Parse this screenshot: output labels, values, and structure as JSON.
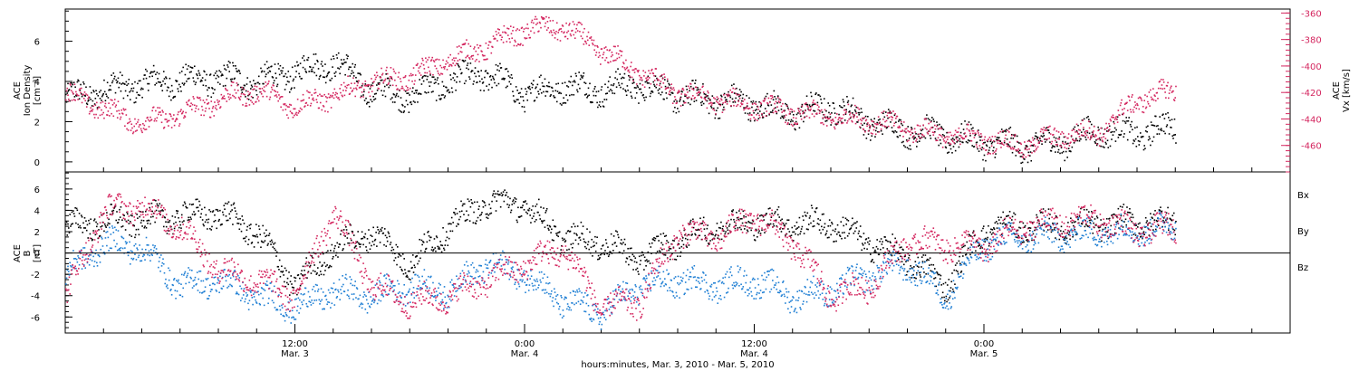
{
  "colors": {
    "black": "#000000",
    "pink": "#d4265f",
    "blue": "#1f7fd4"
  },
  "chart_data": [
    {
      "type": "scatter",
      "panel": "top",
      "ylabel_left_lines": [
        "ACE",
        "Ion Density",
        "[cm⁻³]"
      ],
      "ylabel_right_lines": [
        "ACE",
        "Vx [km/s]"
      ],
      "y_left_range": [
        -0.5,
        7.6
      ],
      "y_left_ticks": [
        0,
        2,
        4,
        6
      ],
      "y_right_range": [
        -480,
        -357
      ],
      "y_right_ticks": [
        -360,
        -380,
        -400,
        -420,
        -440,
        -460
      ],
      "x_range_hours": [
        0,
        64
      ],
      "series": [
        {
          "color": "#000000",
          "axis": "left",
          "x": [
            0,
            2,
            4,
            6,
            8,
            10,
            12,
            14,
            16,
            18,
            20,
            22,
            24,
            26,
            28,
            30,
            32,
            34,
            36,
            38,
            40,
            42,
            44,
            46,
            48,
            50,
            52,
            54,
            56,
            58
          ],
          "y": [
            3.2,
            3.6,
            3.9,
            4.1,
            4.2,
            4.0,
            4.5,
            5.0,
            3.6,
            3.3,
            4.0,
            4.4,
            3.4,
            3.8,
            3.6,
            3.9,
            3.3,
            3.1,
            2.9,
            2.4,
            2.8,
            2.0,
            1.6,
            1.3,
            1.0,
            0.8,
            1.0,
            1.6,
            1.4,
            1.8
          ]
        },
        {
          "color": "#d4265f",
          "axis": "right",
          "x": [
            0,
            2,
            4,
            6,
            8,
            10,
            12,
            14,
            16,
            18,
            20,
            22,
            24,
            26,
            28,
            30,
            32,
            34,
            36,
            38,
            40,
            42,
            44,
            46,
            48,
            50,
            52,
            54,
            56,
            58
          ],
          "y": [
            -420,
            -432,
            -443,
            -436,
            -425,
            -418,
            -430,
            -422,
            -412,
            -408,
            -395,
            -385,
            -372,
            -370,
            -388,
            -405,
            -420,
            -425,
            -430,
            -435,
            -438,
            -440,
            -447,
            -452,
            -455,
            -460,
            -452,
            -450,
            -425,
            -418
          ]
        }
      ]
    },
    {
      "type": "scatter",
      "panel": "bottom",
      "ylabel_lines": [
        "ACE",
        "B",
        "[nT]"
      ],
      "y_range": [
        -7.5,
        7.6
      ],
      "y_ticks": [
        -6,
        -4,
        -2,
        0,
        2,
        4,
        6
      ],
      "x_range_hours": [
        0,
        64
      ],
      "zero_line": true,
      "series": [
        {
          "name": "Bx",
          "color": "#000000",
          "x": [
            0,
            2,
            4,
            6,
            8,
            10,
            12,
            14,
            16,
            18,
            20,
            22,
            24,
            26,
            28,
            30,
            32,
            34,
            36,
            38,
            40,
            42,
            44,
            46,
            48,
            50,
            52,
            54,
            56,
            58
          ],
          "y": [
            2.5,
            3.0,
            3.2,
            3.5,
            3.8,
            2.0,
            -3.0,
            0.5,
            2.0,
            -1.0,
            2.5,
            4.8,
            4.5,
            1.5,
            1.0,
            -0.5,
            1.2,
            2.5,
            3.0,
            2.8,
            2.8,
            1.0,
            -0.5,
            -3.0,
            2.3,
            2.5,
            2.6,
            2.8,
            2.9,
            3.0
          ]
        },
        {
          "name": "By",
          "color": "#1f7fd4",
          "x": [
            0,
            2,
            4,
            6,
            8,
            10,
            12,
            14,
            16,
            18,
            20,
            22,
            24,
            26,
            28,
            30,
            32,
            34,
            36,
            38,
            40,
            42,
            44,
            46,
            48,
            50,
            52,
            54,
            56,
            58
          ],
          "y": [
            -2.0,
            1.0,
            0.5,
            -3.0,
            -2.5,
            -4.0,
            -5.0,
            -3.5,
            -4.0,
            -3.0,
            -3.5,
            -1.0,
            -2.0,
            -4.5,
            -5.5,
            -3.0,
            -2.5,
            -3.0,
            -2.5,
            -4.0,
            -3.5,
            -2.0,
            -1.0,
            -4.0,
            1.0,
            1.5,
            1.8,
            2.0,
            2.2,
            2.5
          ]
        },
        {
          "name": "Bz",
          "color": "#d4265f",
          "x": [
            0,
            2,
            4,
            6,
            8,
            10,
            12,
            14,
            16,
            18,
            20,
            22,
            24,
            26,
            28,
            30,
            32,
            34,
            36,
            38,
            40,
            42,
            44,
            46,
            48,
            50,
            52,
            54,
            56,
            58
          ],
          "y": [
            -4.0,
            4.0,
            4.5,
            2.5,
            -1.5,
            -2.5,
            -4.0,
            4.0,
            -3.0,
            -4.5,
            -4.0,
            -2.5,
            -1.0,
            0.5,
            -5.0,
            -4.5,
            2.0,
            1.5,
            3.5,
            1.0,
            -4.0,
            -3.0,
            1.2,
            0.8,
            0.6,
            2.5,
            3.0,
            3.2,
            2.0,
            2.5
          ]
        }
      ],
      "legend": [
        "Bx",
        "By",
        "Bz"
      ]
    }
  ],
  "x_axis": {
    "ticks": [
      {
        "hour": 12,
        "time": "12:00",
        "date": "Mar. 3"
      },
      {
        "hour": 24,
        "time": "0:00",
        "date": "Mar. 4"
      },
      {
        "hour": 36,
        "time": "12:00",
        "date": "Mar. 4"
      },
      {
        "hour": 48,
        "time": "0:00",
        "date": "Mar. 5"
      }
    ],
    "minor_tick_hours": 2,
    "title": "hours:minutes, Mar.  3, 2010 - Mar.  5, 2010"
  }
}
